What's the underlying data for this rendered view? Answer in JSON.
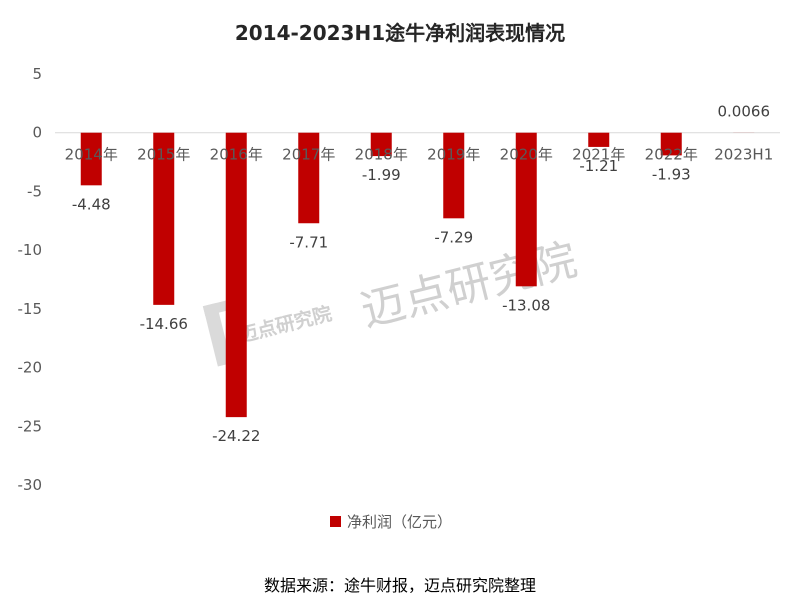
{
  "chart_data": {
    "type": "bar",
    "title": "2014-2023H1途牛净利润表现情况",
    "categories": [
      "2014年",
      "2015年",
      "2016年",
      "2017年",
      "2018年",
      "2019年",
      "2020年",
      "2021年",
      "2022年",
      "2023H1"
    ],
    "series": [
      {
        "name": "净利润（亿元）",
        "values": [
          -4.48,
          -14.66,
          -24.22,
          -7.71,
          -1.99,
          -7.29,
          -13.08,
          -1.21,
          -1.93,
          0.0066
        ]
      }
    ],
    "data_labels": [
      "-4.48",
      "-14.66",
      "-24.22",
      "-7.71",
      "-1.99",
      "-7.29",
      "-13.08",
      "-1.21",
      "-1.93",
      "0.0066"
    ],
    "yticks": [
      5,
      0,
      -5,
      -10,
      -15,
      -20,
      -25,
      -30
    ],
    "ylim": [
      -30,
      5
    ],
    "grid": false,
    "legend_position": "bottom",
    "bar_color": "#C00000"
  },
  "watermark": {
    "brand": "迈点研究院",
    "badge": "迈点研究院"
  },
  "source_note": "数据来源：途牛财报，迈点研究院整理"
}
